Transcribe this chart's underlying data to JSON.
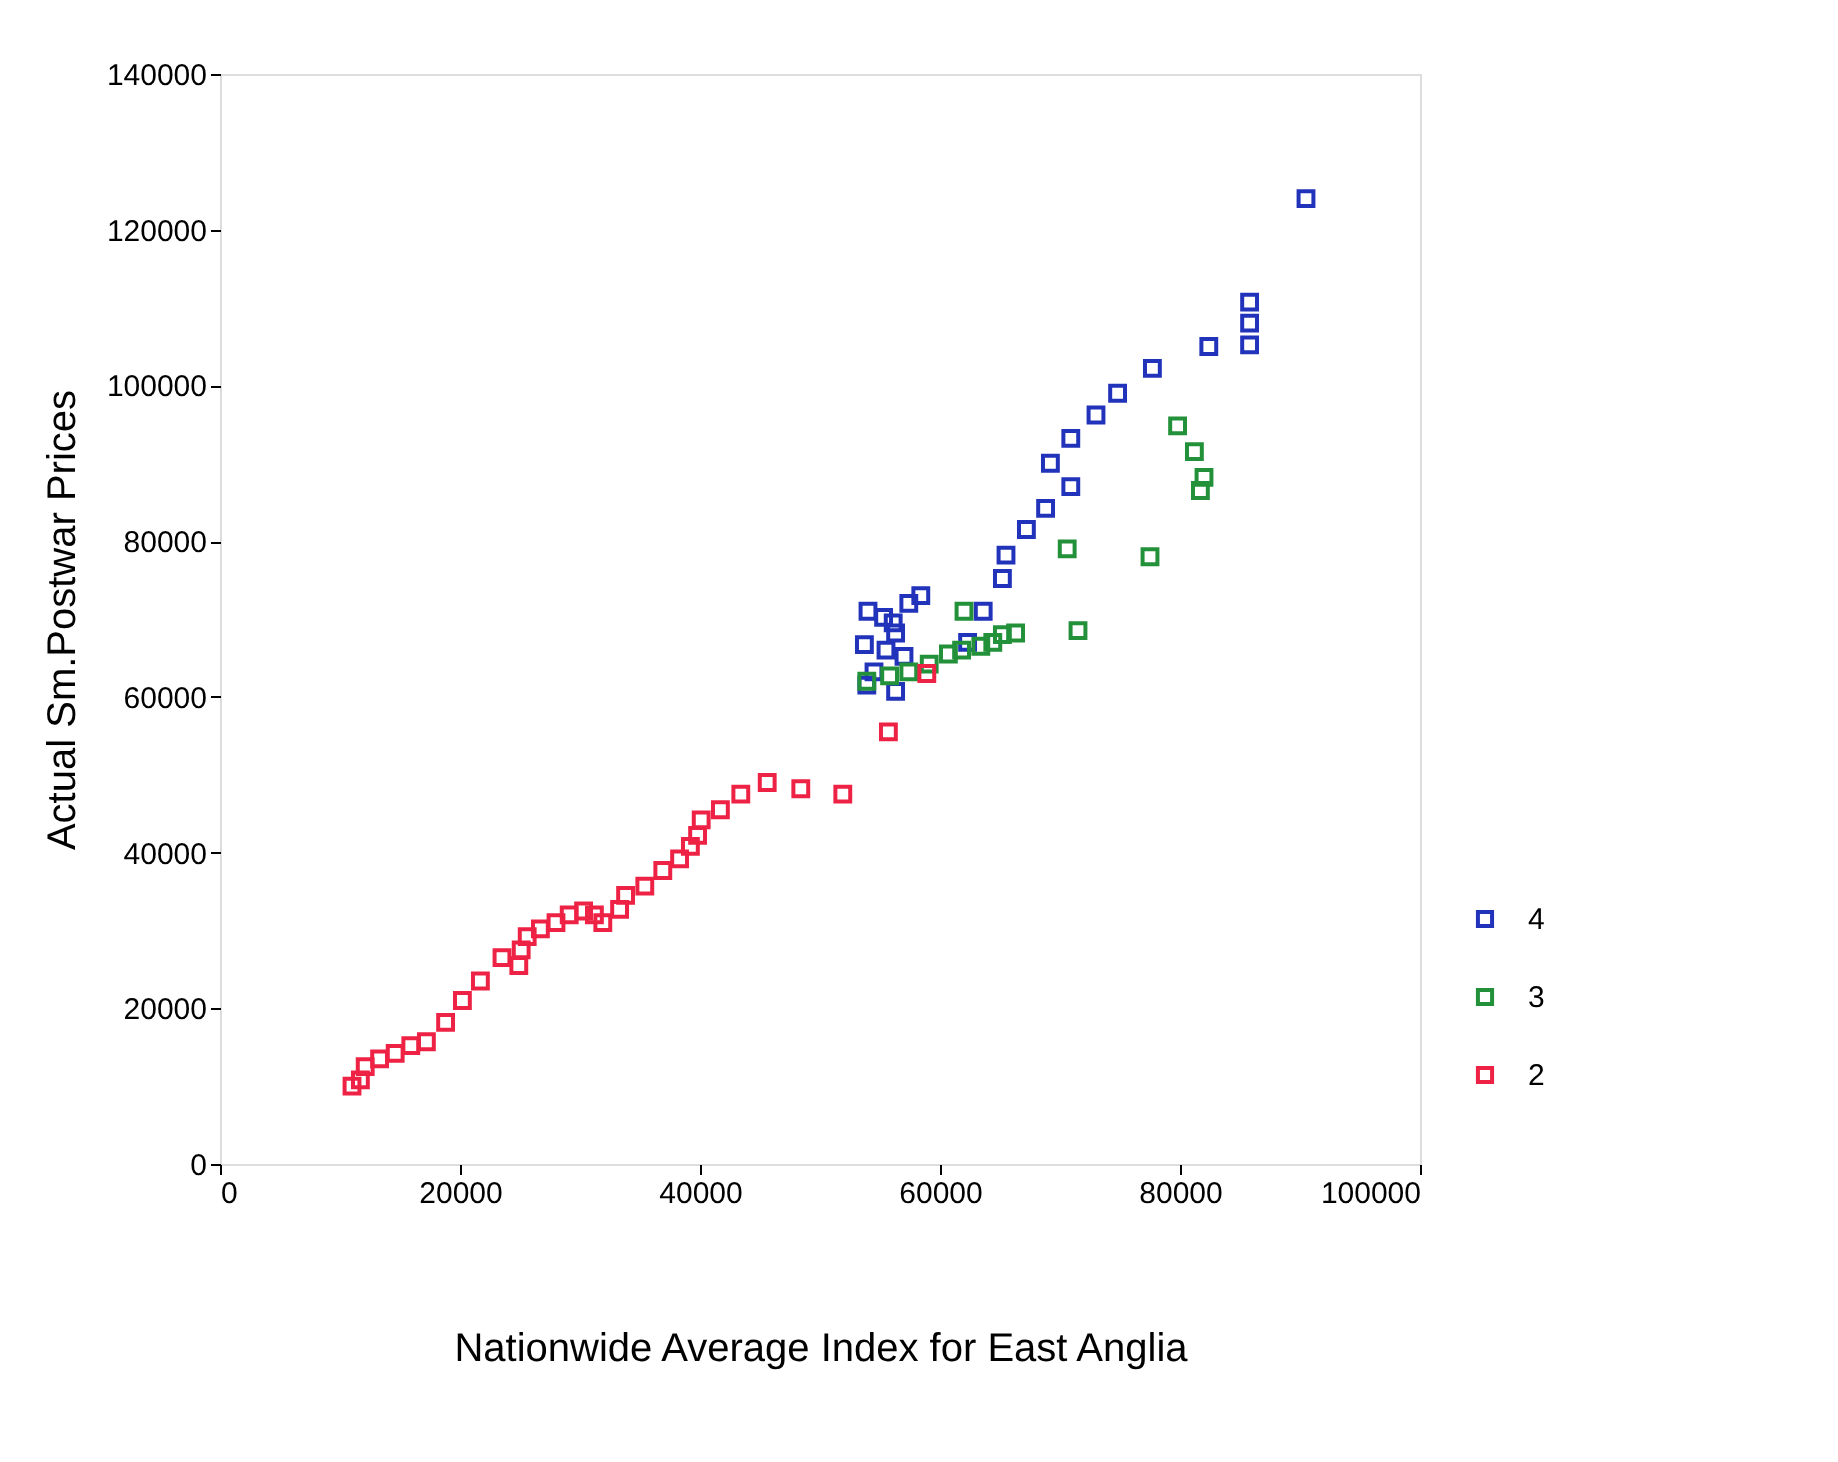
{
  "chart_data": {
    "type": "scatter",
    "xlabel": "Nationwide Average Index for East Anglia",
    "ylabel": "Actual Sm.Postwar Prices",
    "xlim": [
      0,
      100000
    ],
    "xticks": [
      0,
      20000,
      40000,
      60000,
      80000,
      100000
    ],
    "ylim": [
      0,
      140000
    ],
    "yticks": [
      0,
      20000,
      40000,
      60000,
      80000,
      100000,
      120000,
      140000
    ],
    "grid": false,
    "legend": "bottom right",
    "marker": "square",
    "series": [
      {
        "name": "4",
        "color": "#2233bb",
        "x": [
          90500,
          85800,
          85800,
          85800,
          82400,
          77700,
          74800,
          73000,
          70900,
          69200,
          70900,
          68800,
          67200,
          65500,
          65200,
          58400,
          57400,
          54000,
          55300,
          56100,
          56300,
          53700,
          55500,
          57000,
          63600,
          62300,
          54500,
          53900,
          56300
        ],
        "values": [
          124000,
          110700,
          108000,
          105200,
          105000,
          102200,
          99000,
          96200,
          93200,
          90000,
          87000,
          84200,
          81500,
          78200,
          75200,
          73000,
          72000,
          71000,
          70200,
          69500,
          68200,
          66700,
          66000,
          65200,
          71000,
          67000,
          63200,
          61500,
          60700
        ]
      },
      {
        "name": "3",
        "color": "#22913a",
        "x": [
          79800,
          81200,
          82000,
          81700,
          70600,
          77500,
          62000,
          71500,
          66300,
          65200,
          64400,
          63400,
          61800,
          60700,
          59100,
          57400,
          55800,
          53900
        ],
        "values": [
          94800,
          91500,
          88200,
          86500,
          79000,
          78000,
          71000,
          68500,
          68200,
          68000,
          67000,
          66500,
          66000,
          65500,
          64200,
          63200,
          62700,
          62000
        ]
      },
      {
        "name": "2",
        "color": "#ee2244",
        "x": [
          58900,
          55700,
          51900,
          48400,
          45600,
          43400,
          41700,
          40100,
          39800,
          39200,
          38300,
          36900,
          35400,
          33800,
          33300,
          31900,
          31200,
          30300,
          29100,
          28000,
          26700,
          25600,
          25100,
          24900,
          23500,
          21700,
          20200,
          18800,
          17200,
          15900,
          14600,
          13300,
          12100,
          11700,
          11000
        ],
        "values": [
          63000,
          55500,
          47500,
          48200,
          49000,
          47500,
          45500,
          44200,
          42200,
          40800,
          39200,
          37700,
          35700,
          34500,
          32700,
          31000,
          32000,
          32500,
          32000,
          31000,
          30200,
          29200,
          27500,
          25500,
          26500,
          23500,
          21000,
          18200,
          15700,
          15200,
          14200,
          13500,
          12500,
          10800,
          10000
        ]
      }
    ]
  }
}
